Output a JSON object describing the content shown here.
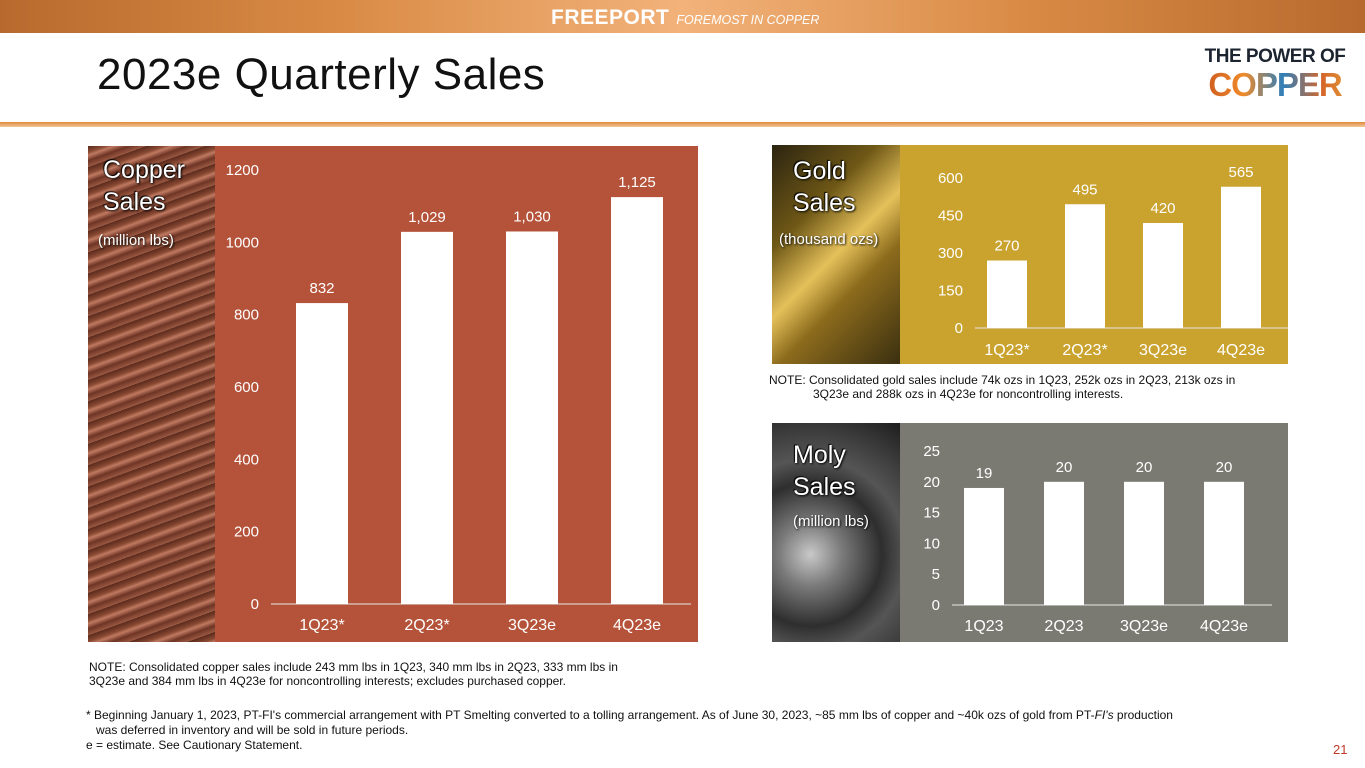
{
  "header": {
    "brand_name": "FREEPORT",
    "brand_tagline": "FOREMOST IN COPPER",
    "logo_top": "THE POWER OF",
    "logo_bottom": "COPPER"
  },
  "page_title": "2023e Quarterly Sales",
  "colors": {
    "copper_panel": "#b5533a",
    "gold_panel": "#caa22e",
    "moly_panel": "#7a7a72",
    "bar": "#ffffff",
    "page_number": "#c0392b"
  },
  "panels": {
    "copper": {
      "title_line1": "Copper",
      "title_line2": "Sales",
      "unit": "(million lbs)"
    },
    "gold": {
      "title_line1": "Gold",
      "title_line2": "Sales",
      "unit": "(thousand ozs)"
    },
    "moly": {
      "title_line1": "Moly",
      "title_line2": "Sales",
      "unit": "(million lbs)"
    }
  },
  "chart_data": [
    {
      "id": "copper",
      "type": "bar",
      "categories": [
        "1Q23*",
        "2Q23*",
        "3Q23e",
        "4Q23e"
      ],
      "values": [
        832,
        1029,
        1030,
        1125
      ],
      "data_labels": [
        "832",
        "1,029",
        "1,030",
        "1,125"
      ],
      "ylim": [
        0,
        1200
      ],
      "yticks": [
        0,
        200,
        400,
        600,
        800,
        1000,
        1200
      ],
      "grid": false
    },
    {
      "id": "gold",
      "type": "bar",
      "categories": [
        "1Q23*",
        "2Q23*",
        "3Q23e",
        "4Q23e"
      ],
      "values": [
        270,
        495,
        420,
        565
      ],
      "data_labels": [
        "270",
        "495",
        "420",
        "565"
      ],
      "ylim": [
        0,
        600
      ],
      "yticks": [
        0,
        150,
        300,
        450,
        600
      ],
      "grid": false
    },
    {
      "id": "moly",
      "type": "bar",
      "categories": [
        "1Q23",
        "2Q23",
        "3Q23e",
        "4Q23e"
      ],
      "values": [
        19,
        20,
        20,
        20
      ],
      "data_labels": [
        "19",
        "20",
        "20",
        "20"
      ],
      "ylim": [
        0,
        25
      ],
      "yticks": [
        0,
        5,
        10,
        15,
        20,
        25
      ],
      "grid": false
    }
  ],
  "notes": {
    "gold_line1": "NOTE: Consolidated gold sales include 74k ozs in 1Q23, 252k ozs in 2Q23, 213k ozs in",
    "gold_line2": "3Q23e and 288k ozs in 4Q23e for noncontrolling interests.",
    "copper_line1": "NOTE: Consolidated copper sales include 243 mm lbs in 1Q23, 340 mm lbs in 2Q23, 333 mm lbs in",
    "copper_line2": "3Q23e and 384 mm lbs in 4Q23e for noncontrolling interests; excludes purchased copper."
  },
  "footnotes": {
    "line1_a": "* Beginning January 1, 2023, PT-FI's commercial arrangement with PT Smelting converted to a tolling arrangement. As of June 30, 2023, ~85 mm lbs of copper and ~40k ozs of gold from PT-",
    "line1_b": "FI's",
    "line1_c": " production",
    "line2": "was deferred in inventory and will be sold in future periods.",
    "line3": "e = estimate. See Cautionary Statement."
  },
  "page_number": "21"
}
